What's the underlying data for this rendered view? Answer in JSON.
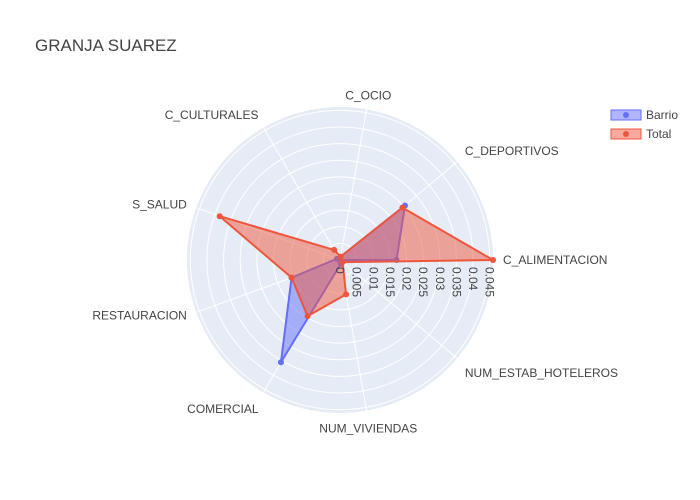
{
  "chart_data": {
    "type": "radar",
    "title": "GRANJA SUAREZ",
    "categories": [
      "C_ALIMENTACION",
      "C_DEPORTIVOS",
      "C_OCIO",
      "C_CULTURALES",
      "S_SALUD",
      "RESTAURACION",
      "COMERCIAL",
      "NUM_VIVIENDAS",
      "NUM_ESTAB_HOTELEROS"
    ],
    "radial_ticks": [
      "0",
      "0.005",
      "0.01",
      "0.015",
      "0.02",
      "0.025",
      "0.03",
      "0.035",
      "0.04",
      "0.045"
    ],
    "radial_range": [
      0,
      0.046
    ],
    "legend_position": "top-right",
    "series": [
      {
        "name": "Barrio",
        "color": "#636efa",
        "values": [
          0.017,
          0.0255,
          0.001,
          0.0005,
          0.001,
          0.0155,
          0.0355,
          0.0012,
          0.0
        ]
      },
      {
        "name": "Total",
        "color": "#ef553b",
        "values": [
          0.046,
          0.0245,
          0.001,
          0.0035,
          0.0385,
          0.0155,
          0.0195,
          0.0105,
          0.001
        ]
      }
    ]
  }
}
